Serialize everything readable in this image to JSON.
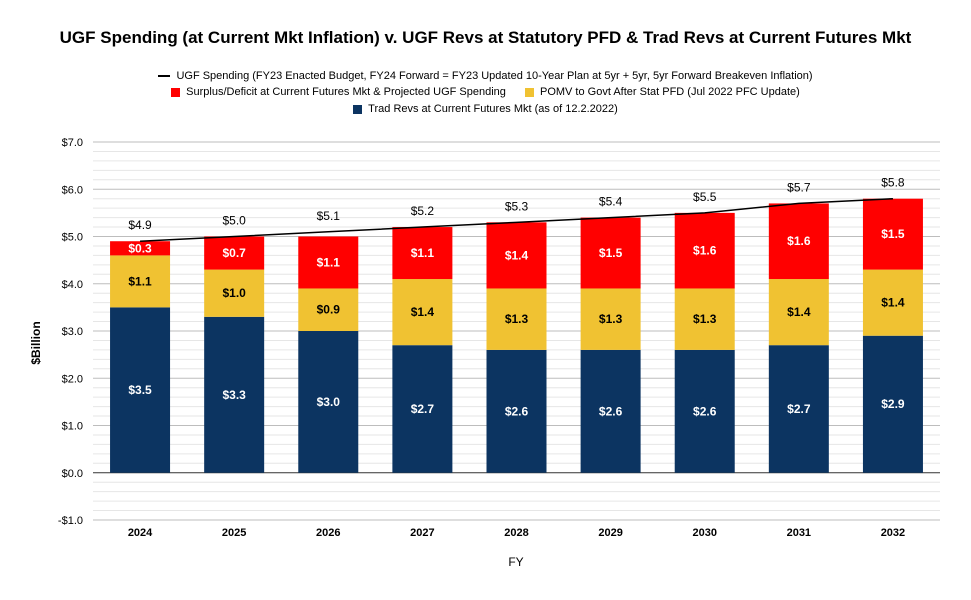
{
  "chart_data": {
    "type": "bar",
    "stacked": true,
    "title": "UGF Spending (at Current Mkt Inflation) v. UGF Revs at Statutory PFD & Trad Revs at Current Futures Mkt",
    "xlabel": "FY",
    "ylabel": "$Billion",
    "ylim": [
      -1.0,
      7.0
    ],
    "ytick_labels": [
      "-$1.0",
      "$0.0",
      "$1.0",
      "$2.0",
      "$3.0",
      "$4.0",
      "$5.0",
      "$6.0",
      "$7.0"
    ],
    "ytick_values": [
      -1.0,
      0.0,
      1.0,
      2.0,
      3.0,
      4.0,
      5.0,
      6.0,
      7.0
    ],
    "grid": true,
    "categories": [
      "2024",
      "2025",
      "2026",
      "2027",
      "2028",
      "2029",
      "2030",
      "2031",
      "2032"
    ],
    "series": [
      {
        "name": "Trad Revs at Current Futures Mkt (as of 12.2.2022)",
        "color": "#0c3461",
        "values": [
          3.5,
          3.3,
          3.0,
          2.7,
          2.6,
          2.6,
          2.6,
          2.7,
          2.9
        ],
        "labels": [
          "$3.5",
          "$3.3",
          "$3.0",
          "$2.7",
          "$2.6",
          "$2.6",
          "$2.6",
          "$2.7",
          "$2.9"
        ],
        "label_color": "#ffffff"
      },
      {
        "name": "POMV to Govt After Stat PFD (Jul 2022 PFC Update)",
        "color": "#f0c232",
        "values": [
          1.1,
          1.0,
          0.9,
          1.4,
          1.3,
          1.3,
          1.3,
          1.4,
          1.4
        ],
        "labels": [
          "$1.1",
          "$1.0",
          "$0.9",
          "$1.4",
          "$1.3",
          "$1.3",
          "$1.3",
          "$1.4",
          "$1.4"
        ],
        "label_color": "#000000"
      },
      {
        "name": "Surplus/Deficit at Current Futures Mkt & Projected UGF Spending",
        "color": "#ff0000",
        "values": [
          0.3,
          0.7,
          1.1,
          1.1,
          1.4,
          1.5,
          1.6,
          1.6,
          1.5
        ],
        "labels": [
          "$0.3",
          "$0.7",
          "$1.1",
          "$1.1",
          "$1.4",
          "$1.5",
          "$1.6",
          "$1.6",
          "$1.5"
        ],
        "label_color": "#ffffff"
      }
    ],
    "line_series": {
      "name": "UGF Spending (FY23 Enacted Budget, FY24 Forward = FY23 Updated 10-Year Plan at 5yr + 5yr, 5yr Forward Breakeven Inflation)",
      "color": "#000000",
      "values": [
        4.9,
        5.0,
        5.1,
        5.2,
        5.3,
        5.4,
        5.5,
        5.7,
        5.8
      ],
      "labels": [
        "$4.9",
        "$5.0",
        "$5.1",
        "$5.2",
        "$5.3",
        "$5.4",
        "$5.5",
        "$5.7",
        "$5.8"
      ]
    },
    "legend": {
      "line_label": "UGF Spending (FY23 Enacted Budget, FY24 Forward = FY23 Updated 10-Year Plan at 5yr + 5yr, 5yr Forward Breakeven Inflation)",
      "surplus_label": "Surplus/Deficit at Current Futures Mkt & Projected UGF Spending",
      "pomv_label": "POMV to Govt After Stat PFD (Jul 2022 PFC Update)",
      "trad_label": "Trad Revs at Current Futures Mkt (as of 12.2.2022)",
      "placement": "top"
    }
  }
}
